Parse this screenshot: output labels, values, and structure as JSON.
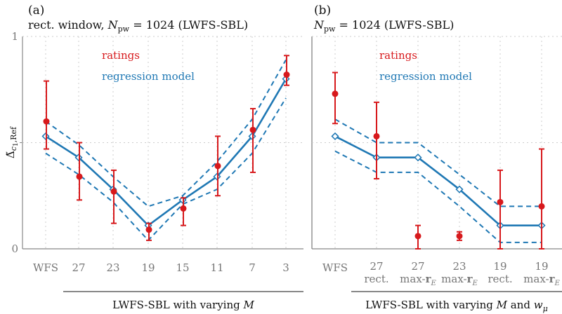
{
  "colors": {
    "ratings": "#d7191c",
    "regression": "#1f78b4",
    "axis": "#888888",
    "grid": "#cccccc"
  },
  "chart_data": [
    {
      "type": "line",
      "panel_label": "(a)",
      "title": "rect. window, N_pw = 1024 (LWFS-SBL)",
      "title_parts": [
        "rect. window, ",
        "N",
        "pw",
        " = 1024 (LWFS-SBL)"
      ],
      "ylabel_parts": [
        "Δ̃",
        "c",
        "1",
        ",Ref"
      ],
      "y_ticks": [
        "0",
        "1"
      ],
      "ylim": [
        0,
        1
      ],
      "categories": [
        "WFS",
        "27",
        "23",
        "19",
        "15",
        "11",
        "7",
        "3"
      ],
      "category_sublabels": [
        "",
        "",
        "",
        "",
        "",
        "",
        "",
        ""
      ],
      "group_label_parts": [
        "LWFS-SBL with varying ",
        "M",
        ""
      ],
      "legend": [
        "ratings",
        "regression model"
      ],
      "grid": true,
      "series": [
        {
          "name": "ratings",
          "values": [
            0.6,
            0.34,
            0.27,
            0.09,
            0.19,
            0.39,
            0.56,
            0.82
          ],
          "err_low": [
            0.47,
            0.23,
            0.12,
            0.04,
            0.11,
            0.25,
            0.36,
            0.77
          ],
          "err_high": [
            0.79,
            0.5,
            0.37,
            0.12,
            0.24,
            0.53,
            0.66,
            0.91
          ]
        },
        {
          "name": "regression model",
          "values": [
            0.53,
            0.43,
            0.28,
            0.11,
            0.23,
            0.34,
            0.53,
            0.8
          ],
          "ci_low": [
            0.45,
            0.35,
            0.22,
            0.04,
            0.21,
            0.28,
            0.45,
            0.71
          ],
          "ci_high": [
            0.6,
            0.49,
            0.34,
            0.2,
            0.25,
            0.41,
            0.61,
            0.89
          ]
        }
      ]
    },
    {
      "type": "line",
      "panel_label": "(b)",
      "title": "N_pw = 1024 (LWFS-SBL)",
      "title_parts": [
        "",
        "N",
        "pw",
        " = 1024 (LWFS-SBL)"
      ],
      "ylim": [
        0,
        1
      ],
      "categories": [
        "WFS",
        "27",
        "27",
        "23",
        "19",
        "19"
      ],
      "category_sublabels": [
        "",
        "rect.",
        "max-r_E",
        "max-r_E",
        "rect.",
        "max-r_E"
      ],
      "group_label_parts": [
        "LWFS-SBL with varying ",
        "M",
        " and ",
        "w",
        "μ"
      ],
      "legend": [
        "ratings",
        "regression model"
      ],
      "grid": true,
      "series": [
        {
          "name": "ratings",
          "values": [
            0.73,
            0.53,
            0.06,
            0.06,
            0.22,
            0.2
          ],
          "err_low": [
            0.59,
            0.33,
            0.0,
            0.04,
            0.0,
            0.0
          ],
          "err_high": [
            0.83,
            0.69,
            0.11,
            0.08,
            0.37,
            0.47
          ]
        },
        {
          "name": "regression model",
          "values": [
            0.53,
            0.43,
            0.43,
            0.28,
            0.11,
            0.11
          ],
          "ci_low": [
            0.46,
            0.36,
            0.36,
            0.2,
            0.03,
            0.03
          ],
          "ci_high": [
            0.61,
            0.5,
            0.5,
            0.35,
            0.2,
            0.2
          ]
        }
      ]
    }
  ]
}
